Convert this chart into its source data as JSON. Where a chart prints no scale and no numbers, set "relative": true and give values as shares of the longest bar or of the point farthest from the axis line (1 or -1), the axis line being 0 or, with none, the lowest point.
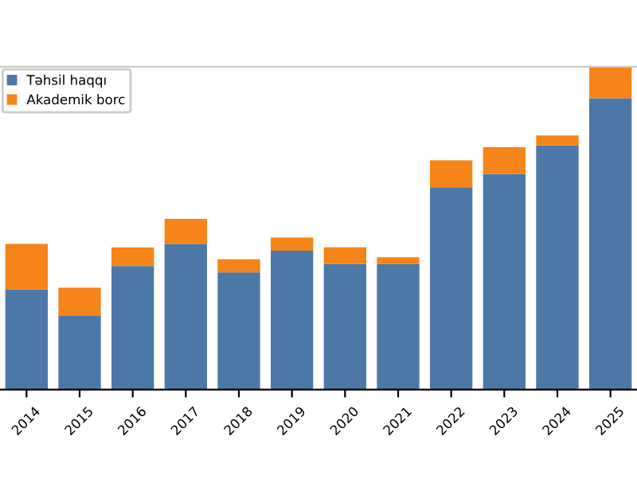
{
  "chart_data": {
    "type": "bar",
    "stacked": true,
    "relative": true,
    "legend": "top left",
    "categories": [
      "2014",
      "2015",
      "2016",
      "2017",
      "2018",
      "2019",
      "2020",
      "2021",
      "2022",
      "2023",
      "2024",
      "2025"
    ],
    "series": [
      {
        "name": "Təhsil haqqı",
        "color": "#4c78a8",
        "values": [
          0.311,
          0.228,
          0.383,
          0.451,
          0.363,
          0.43,
          0.389,
          0.389,
          0.627,
          0.668,
          0.756,
          0.902
        ]
      },
      {
        "name": "Akademik borc",
        "color": "#f58518",
        "values": [
          0.14,
          0.088,
          0.057,
          0.078,
          0.041,
          0.041,
          0.052,
          0.021,
          0.083,
          0.083,
          0.031,
          0.098
        ]
      }
    ]
  }
}
